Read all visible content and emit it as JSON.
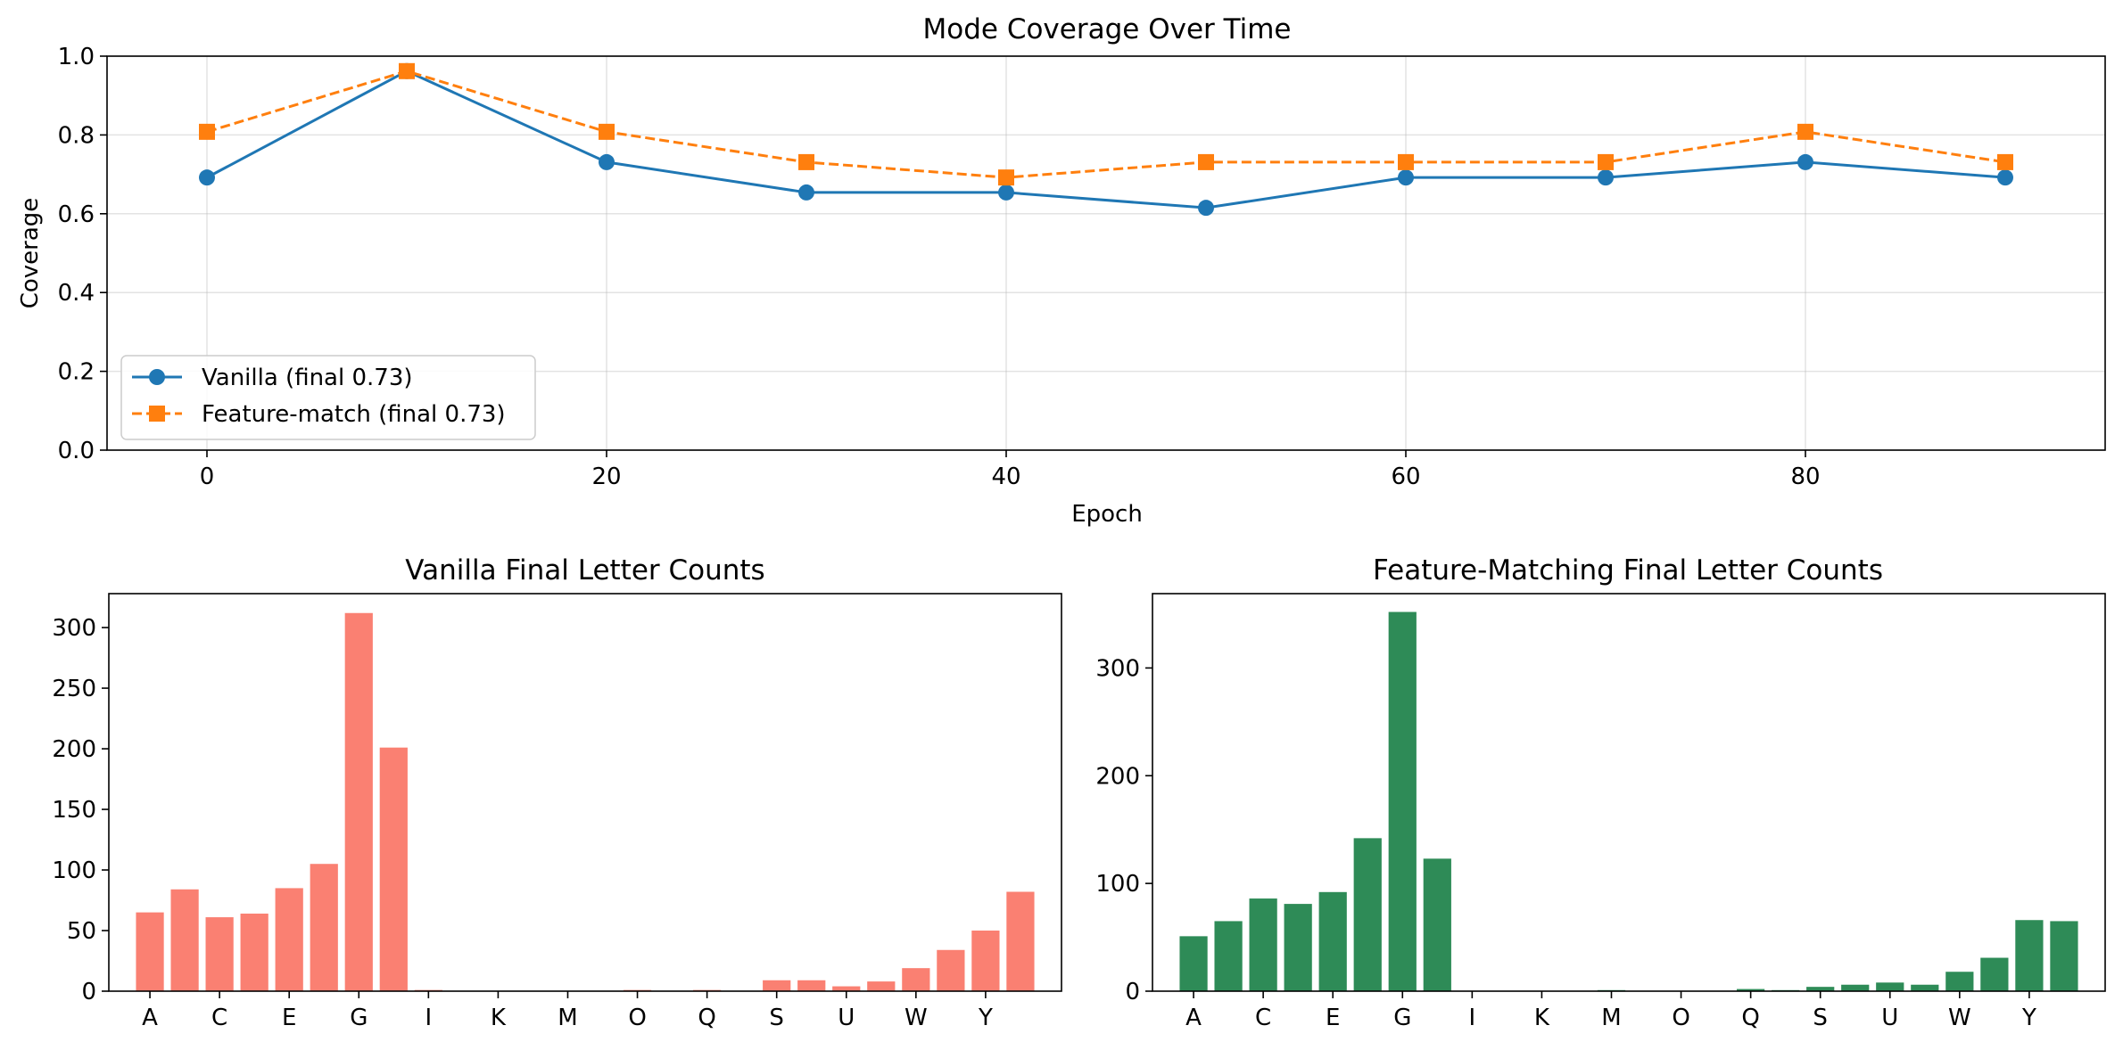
{
  "chart_data": [
    {
      "type": "line",
      "title": "Mode Coverage Over Time",
      "xlabel": "Epoch",
      "ylabel": "Coverage",
      "xlim": [
        -5,
        95
      ],
      "ylim": [
        0.0,
        1.0
      ],
      "xticks": [
        0,
        20,
        40,
        60,
        80
      ],
      "yticks": [
        0.0,
        0.2,
        0.4,
        0.6,
        0.8,
        1.0
      ],
      "ytick_labels": [
        "0.0",
        "0.2",
        "0.4",
        "0.6",
        "0.8",
        "1.0"
      ],
      "grid": true,
      "legend_position": "lower-left",
      "x": [
        0,
        10,
        20,
        30,
        40,
        50,
        60,
        70,
        80,
        90
      ],
      "series": [
        {
          "name": "Vanilla (final 0.73)",
          "color": "#1f77b4",
          "marker": "circle",
          "linestyle": "solid",
          "values": [
            0.692,
            0.962,
            0.731,
            0.654,
            0.654,
            0.615,
            0.692,
            0.692,
            0.731,
            0.692
          ]
        },
        {
          "name": "Feature-match (final 0.73)",
          "color": "#ff7f0e",
          "marker": "square",
          "linestyle": "dashed",
          "values": [
            0.808,
            0.962,
            0.808,
            0.731,
            0.692,
            0.731,
            0.731,
            0.731,
            0.808,
            0.731
          ]
        }
      ]
    },
    {
      "type": "bar",
      "title": "Vanilla Final Letter Counts",
      "color": "#fa8072",
      "categories": [
        "A",
        "B",
        "C",
        "D",
        "E",
        "F",
        "G",
        "H",
        "I",
        "J",
        "K",
        "L",
        "M",
        "N",
        "O",
        "P",
        "Q",
        "R",
        "S",
        "T",
        "U",
        "V",
        "W",
        "X",
        "Y",
        "Z"
      ],
      "tick_labels": [
        "A",
        "C",
        "E",
        "G",
        "I",
        "K",
        "M",
        "O",
        "Q",
        "S",
        "U",
        "W",
        "Y"
      ],
      "values": [
        65,
        84,
        61,
        64,
        85,
        105,
        312,
        201,
        1,
        0,
        0,
        0,
        0,
        0,
        1,
        0,
        1,
        0,
        9,
        9,
        4,
        8,
        19,
        34,
        50,
        82
      ],
      "ylim": [
        0,
        328
      ],
      "yticks": [
        0,
        50,
        100,
        150,
        200,
        250,
        300
      ]
    },
    {
      "type": "bar",
      "title": "Feature-Matching Final Letter Counts",
      "color": "#2e8b57",
      "categories": [
        "A",
        "B",
        "C",
        "D",
        "E",
        "F",
        "G",
        "H",
        "I",
        "J",
        "K",
        "L",
        "M",
        "N",
        "O",
        "P",
        "Q",
        "R",
        "S",
        "T",
        "U",
        "V",
        "W",
        "X",
        "Y",
        "Z"
      ],
      "tick_labels": [
        "A",
        "C",
        "E",
        "G",
        "I",
        "K",
        "M",
        "O",
        "Q",
        "S",
        "U",
        "W",
        "Y"
      ],
      "values": [
        51,
        65,
        86,
        81,
        92,
        142,
        352,
        123,
        0,
        0,
        0,
        0,
        1,
        0,
        0,
        0,
        2,
        1,
        4,
        6,
        8,
        6,
        18,
        31,
        66,
        65
      ],
      "ylim": [
        0,
        369
      ],
      "yticks": [
        0,
        100,
        200,
        300
      ]
    }
  ]
}
